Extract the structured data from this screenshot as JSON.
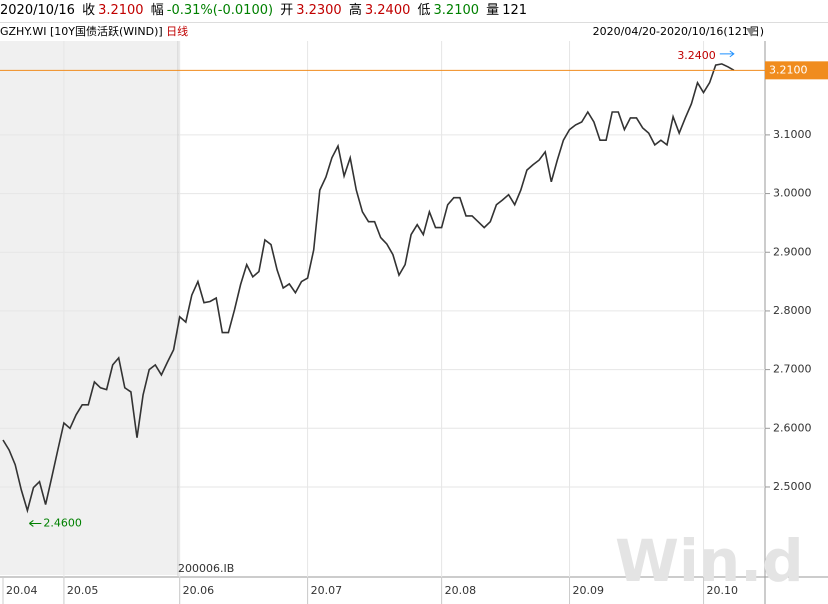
{
  "header": {
    "date": "2020/10/16",
    "close_label": "收",
    "close": "3.2100",
    "change_label": "幅",
    "change": "-0.31%(-0.0100)",
    "open_label": "开",
    "open": "3.2300",
    "high_label": "高",
    "high": "3.2400",
    "low_label": "低",
    "low": "3.2100",
    "volume_label": "量",
    "volume": "121",
    "code": "GZHY.WI",
    "name": "[10Y国债活跃(WIND)]",
    "period": "日线",
    "range": "2020/04/20-2020/10/16(121日)"
  },
  "chart_data": {
    "type": "line",
    "categories": [
      "20.04",
      null,
      null,
      null,
      null,
      null,
      null,
      null,
      null,
      null,
      "20.05",
      null,
      null,
      null,
      null,
      null,
      null,
      null,
      null,
      null,
      null,
      null,
      null,
      null,
      null,
      null,
      null,
      null,
      null,
      "20.06",
      null,
      null,
      null,
      null,
      null,
      null,
      null,
      null,
      null,
      null,
      null,
      null,
      null,
      null,
      null,
      null,
      null,
      null,
      null,
      null,
      "20.07",
      null,
      null,
      null,
      null,
      null,
      null,
      null,
      null,
      null,
      null,
      null,
      null,
      null,
      null,
      null,
      null,
      null,
      null,
      null,
      null,
      null,
      "20.08",
      null,
      null,
      null,
      null,
      null,
      null,
      null,
      null,
      null,
      null,
      null,
      null,
      null,
      null,
      null,
      null,
      null,
      null,
      null,
      null,
      "20.09",
      null,
      null,
      null,
      null,
      null,
      null,
      null,
      null,
      null,
      null,
      null,
      null,
      null,
      null,
      null,
      null,
      null,
      null,
      null,
      null,
      null,
      "20.10",
      null,
      null,
      null,
      null,
      null
    ],
    "series": [
      {
        "color": "#333333",
        "values": [
          2.58,
          2.563,
          2.538,
          2.495,
          2.46,
          2.499,
          2.509,
          2.47,
          2.516,
          2.563,
          2.609,
          2.6,
          2.623,
          2.64,
          2.64,
          2.679,
          2.669,
          2.666,
          2.708,
          2.72,
          2.669,
          2.662,
          2.584,
          2.657,
          2.7,
          2.708,
          2.691,
          2.713,
          2.734,
          2.79,
          2.781,
          2.827,
          2.85,
          2.814,
          2.816,
          2.822,
          2.763,
          2.763,
          2.802,
          2.845,
          2.879,
          2.858,
          2.867,
          2.921,
          2.913,
          2.87,
          2.839,
          2.846,
          2.831,
          2.85,
          2.856,
          2.904,
          3.006,
          3.028,
          3.061,
          3.081,
          3.03,
          3.061,
          3.006,
          2.969,
          2.952,
          2.952,
          2.925,
          2.914,
          2.896,
          2.861,
          2.879,
          2.93,
          2.947,
          2.93,
          2.969,
          2.942,
          2.942,
          2.981,
          2.993,
          2.993,
          2.962,
          2.962,
          2.952,
          2.942,
          2.952,
          2.981,
          2.989,
          2.998,
          2.981,
          3.006,
          3.04,
          3.049,
          3.057,
          3.071,
          3.02,
          3.057,
          3.091,
          3.109,
          3.117,
          3.122,
          3.139,
          3.122,
          3.091,
          3.091,
          3.139,
          3.139,
          3.109,
          3.129,
          3.129,
          3.112,
          3.103,
          3.083,
          3.091,
          3.083,
          3.131,
          3.103,
          3.129,
          3.153,
          3.189,
          3.172,
          3.189,
          3.219,
          3.221,
          3.216,
          3.21
        ]
      }
    ],
    "ylim": [
      2.35,
      3.26
    ],
    "yticks": [
      {
        "value": 2.5,
        "label": "2.5000"
      },
      {
        "value": 2.6,
        "label": "2.6000"
      },
      {
        "value": 2.7,
        "label": "2.7000"
      },
      {
        "value": 2.8,
        "label": "2.8000"
      },
      {
        "value": 2.9,
        "label": "2.9000"
      },
      {
        "value": 3.0,
        "label": "3.0000"
      },
      {
        "value": 3.1,
        "label": "3.1000"
      }
    ],
    "grid": true,
    "last_price": {
      "value": 3.21,
      "label": "3.2100",
      "color": "#f08c1e"
    },
    "max_label": "3.2400",
    "min_label": "2.4600",
    "contract_label": "200006.IB",
    "watermark": "Win.d"
  }
}
